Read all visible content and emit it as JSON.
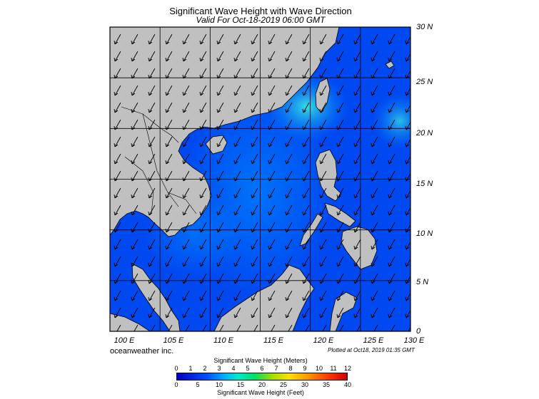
{
  "title": "Significant Wave Height with Wave Direction",
  "subtitle": "Valid For Oct-18-2019 06:00 GMT",
  "map": {
    "lon_range": [
      100,
      130
    ],
    "lat_range": [
      0,
      30
    ],
    "lat_labels": [
      "30 N",
      "25 N",
      "20 N",
      "15 N",
      "10 N",
      "5 N",
      "0"
    ],
    "lon_labels": [
      "100 E",
      "105 E",
      "110 E",
      "115 E",
      "120 E",
      "125 E",
      "130 E"
    ],
    "colors": {
      "land": "#c0c0c0",
      "ocean_low": "#0040ff",
      "ocean_mid": "#0070ff",
      "ocean_high": "#00e0e0"
    }
  },
  "brand": "oceanweather inc.",
  "plotted": "Plotted at Oct18, 2019 01:35 GMT",
  "legend": {
    "meters_label": "Significant Wave Height (Meters)",
    "meters_ticks": [
      "0",
      "1",
      "2",
      "3",
      "4",
      "5",
      "6",
      "7",
      "8",
      "9",
      "10",
      "11",
      "12"
    ],
    "feet_label": "Significant Wave Height (Feet)",
    "feet_ticks": [
      "0",
      "5",
      "10",
      "15",
      "20",
      "25",
      "30",
      "35",
      "40"
    ]
  }
}
